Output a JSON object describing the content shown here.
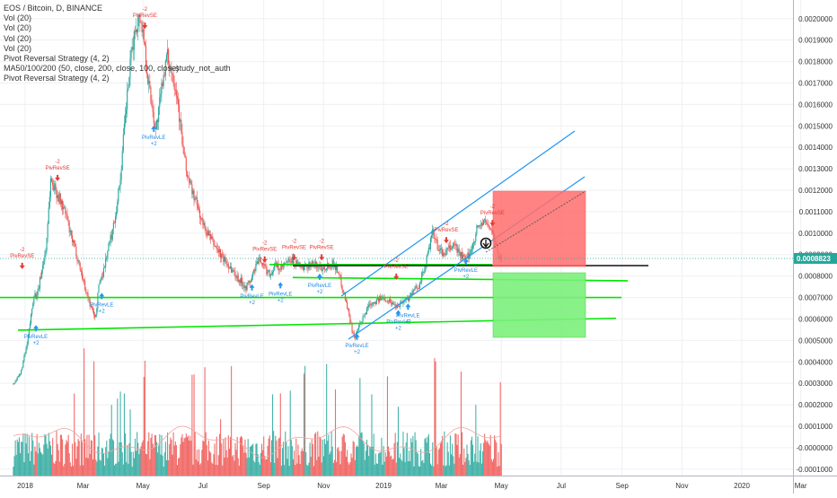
{
  "chart_data": {
    "type": "candlestick",
    "symbol_line": "EOS / Bitcoin, D, BINANCE",
    "indicators": [
      "Vol (20)",
      "Vol (20)",
      "Vol (20)",
      "Vol (20)",
      "Pivot Reversal Strategy (4, 2)",
      "MA50/100/200 (50, close, 200, close, 100, close)",
      "Pivot Reversal Strategy (4, 2)"
    ],
    "watermark_overlap": "study_not_auth",
    "x_tick_labels": [
      "2018",
      "Mar",
      "May",
      "Jul",
      "Sep",
      "Nov",
      "2019",
      "Mar",
      "May",
      "Jul",
      "Sep",
      "Nov",
      "2020",
      "Mar"
    ],
    "y_tick_labels": [
      "0.0020000",
      "0.0019000",
      "0.0018000",
      "0.0017000",
      "0.0016000",
      "0.0015000",
      "0.0014000",
      "0.0013000",
      "0.0012000",
      "0.0011000",
      "0.0010000",
      "0.0009000",
      "0.0008000",
      "0.0007000",
      "0.0006000",
      "0.0005000",
      "0.0004000",
      "0.0003000",
      "0.0002000",
      "0.0001000",
      "-0.0000000",
      "-0.0001000"
    ],
    "last_price_label": "0.0008823",
    "ylim": [
      -0.000105,
      0.00202
    ],
    "price_path": [
      [
        "2017-12-20",
        0.0003
      ],
      [
        "2017-12-27",
        0.00034
      ],
      [
        "2018-01-03",
        0.00048
      ],
      [
        "2018-01-06",
        0.00058
      ],
      [
        "2018-01-10",
        0.00072
      ],
      [
        "2018-01-13",
        0.0007
      ],
      [
        "2018-01-18",
        0.00083
      ],
      [
        "2018-01-22",
        0.00092
      ],
      [
        "2018-01-27",
        0.00125
      ],
      [
        "2018-02-01",
        0.0012
      ],
      [
        "2018-02-06",
        0.00115
      ],
      [
        "2018-02-12",
        0.00108
      ],
      [
        "2018-02-16",
        0.00099
      ],
      [
        "2018-02-22",
        0.00091
      ],
      [
        "2018-02-28",
        0.0008
      ],
      [
        "2018-03-06",
        0.0007
      ],
      [
        "2018-03-10",
        0.00064
      ],
      [
        "2018-03-14",
        0.00061
      ],
      [
        "2018-03-17",
        0.00076
      ],
      [
        "2018-03-22",
        0.00083
      ],
      [
        "2018-03-26",
        0.00092
      ],
      [
        "2018-03-31",
        0.00101
      ],
      [
        "2018-04-04",
        0.00112
      ],
      [
        "2018-04-08",
        0.00126
      ],
      [
        "2018-04-12",
        0.00149
      ],
      [
        "2018-04-16",
        0.00169
      ],
      [
        "2018-04-20",
        0.00186
      ],
      [
        "2018-04-24",
        0.00197
      ],
      [
        "2018-04-28",
        0.00201
      ],
      [
        "2018-05-02",
        0.00191
      ],
      [
        "2018-05-06",
        0.00172
      ],
      [
        "2018-05-10",
        0.0016
      ],
      [
        "2018-05-14",
        0.00148
      ],
      [
        "2018-05-18",
        0.0016
      ],
      [
        "2018-05-22",
        0.00175
      ],
      [
        "2018-05-26",
        0.00182
      ],
      [
        "2018-06-01",
        0.00173
      ],
      [
        "2018-06-05",
        0.00164
      ],
      [
        "2018-06-09",
        0.00146
      ],
      [
        "2018-06-14",
        0.00129
      ],
      [
        "2018-06-19",
        0.00121
      ],
      [
        "2018-06-25",
        0.00113
      ],
      [
        "2018-07-01",
        0.00104
      ],
      [
        "2018-07-08",
        0.00098
      ],
      [
        "2018-07-15",
        0.00093
      ],
      [
        "2018-07-22",
        0.00088
      ],
      [
        "2018-07-29",
        0.00084
      ],
      [
        "2018-08-04",
        0.0008
      ],
      [
        "2018-08-10",
        0.00077
      ],
      [
        "2018-08-14",
        0.00075
      ],
      [
        "2018-08-19",
        0.00078
      ],
      [
        "2018-08-24",
        0.00085
      ],
      [
        "2018-08-29",
        0.00088
      ],
      [
        "2018-09-03",
        0.00083
      ],
      [
        "2018-09-08",
        0.00081
      ],
      [
        "2018-09-13",
        0.00085
      ],
      [
        "2018-09-18",
        0.00083
      ],
      [
        "2018-09-24",
        0.00086
      ],
      [
        "2018-09-30",
        0.00087
      ],
      [
        "2018-10-06",
        0.00085
      ],
      [
        "2018-10-12",
        0.00083
      ],
      [
        "2018-10-18",
        0.00086
      ],
      [
        "2018-10-24",
        0.00085
      ],
      [
        "2018-10-30",
        0.00084
      ],
      [
        "2018-11-05",
        0.00085
      ],
      [
        "2018-11-11",
        0.00086
      ],
      [
        "2018-11-16",
        0.00082
      ],
      [
        "2018-11-20",
        0.00075
      ],
      [
        "2018-11-25",
        0.00066
      ],
      [
        "2018-11-30",
        0.00055
      ],
      [
        "2018-12-03",
        0.00051
      ],
      [
        "2018-12-07",
        0.00056
      ],
      [
        "2018-12-12",
        0.00061
      ],
      [
        "2018-12-17",
        0.00067
      ],
      [
        "2018-12-22",
        0.00068
      ],
      [
        "2018-12-27",
        0.00069
      ],
      [
        "2019-01-02",
        0.0007
      ],
      [
        "2019-01-08",
        0.00068
      ],
      [
        "2019-01-14",
        0.00066
      ],
      [
        "2019-01-20",
        0.00068
      ],
      [
        "2019-01-26",
        0.0007
      ],
      [
        "2019-02-01",
        0.00073
      ],
      [
        "2019-02-06",
        0.00076
      ],
      [
        "2019-02-12",
        0.00084
      ],
      [
        "2019-02-16",
        0.00092
      ],
      [
        "2019-02-20",
        0.001
      ],
      [
        "2019-02-25",
        0.00094
      ],
      [
        "2019-03-02",
        0.0009
      ],
      [
        "2019-03-08",
        0.00092
      ],
      [
        "2019-03-14",
        0.00095
      ],
      [
        "2019-03-20",
        0.0009
      ],
      [
        "2019-03-26",
        0.00087
      ],
      [
        "2019-04-01",
        0.00093
      ],
      [
        "2019-04-06",
        0.00102
      ],
      [
        "2019-04-12",
        0.00105
      ],
      [
        "2019-04-18",
        0.00104
      ],
      [
        "2019-04-22",
        0.001
      ],
      [
        "2019-04-26",
        0.00093
      ],
      [
        "2019-04-29",
        0.00089
      ],
      [
        "2019-05-01",
        0.00088
      ]
    ],
    "volume_axis_label": "study_not_auth"
  },
  "annotations": {
    "long_label": "PivRevLE",
    "short_label": "PivRevSE",
    "plus_two": "+2",
    "minus_two": "-2",
    "pivot_longs": [
      [
        "2018-01-12",
        0.00053
      ],
      [
        "2018-03-20",
        0.00068
      ],
      [
        "2018-05-12",
        0.00146
      ],
      [
        "2018-08-20",
        0.00072
      ],
      [
        "2018-09-18",
        0.00073
      ],
      [
        "2018-10-28",
        0.00077
      ],
      [
        "2018-12-05",
        0.00049
      ],
      [
        "2019-01-16",
        0.0006
      ],
      [
        "2019-01-26",
        0.00063
      ],
      [
        "2019-03-26",
        0.00084
      ]
    ],
    "pivot_shorts": [
      [
        "2017-12-29",
        0.00087
      ],
      [
        "2018-02-03",
        0.00128
      ],
      [
        "2018-05-03",
        0.00199
      ],
      [
        "2018-09-02",
        0.0009
      ],
      [
        "2018-10-02",
        0.00091
      ],
      [
        "2018-10-30",
        0.00091
      ],
      [
        "2019-01-14",
        0.00082
      ],
      [
        "2019-03-06",
        0.00099
      ],
      [
        "2019-04-22",
        0.00107
      ]
    ]
  },
  "colors": {
    "up": "#26a69a",
    "down": "#ef5350",
    "channel": "#2196f3",
    "support": "#00e600",
    "stop_zone": "#ff6e6e",
    "target_zone": "#7cf07c",
    "price_tag": "#26a69a",
    "axis_text": "#333333",
    "grid": "#eef0f3"
  }
}
